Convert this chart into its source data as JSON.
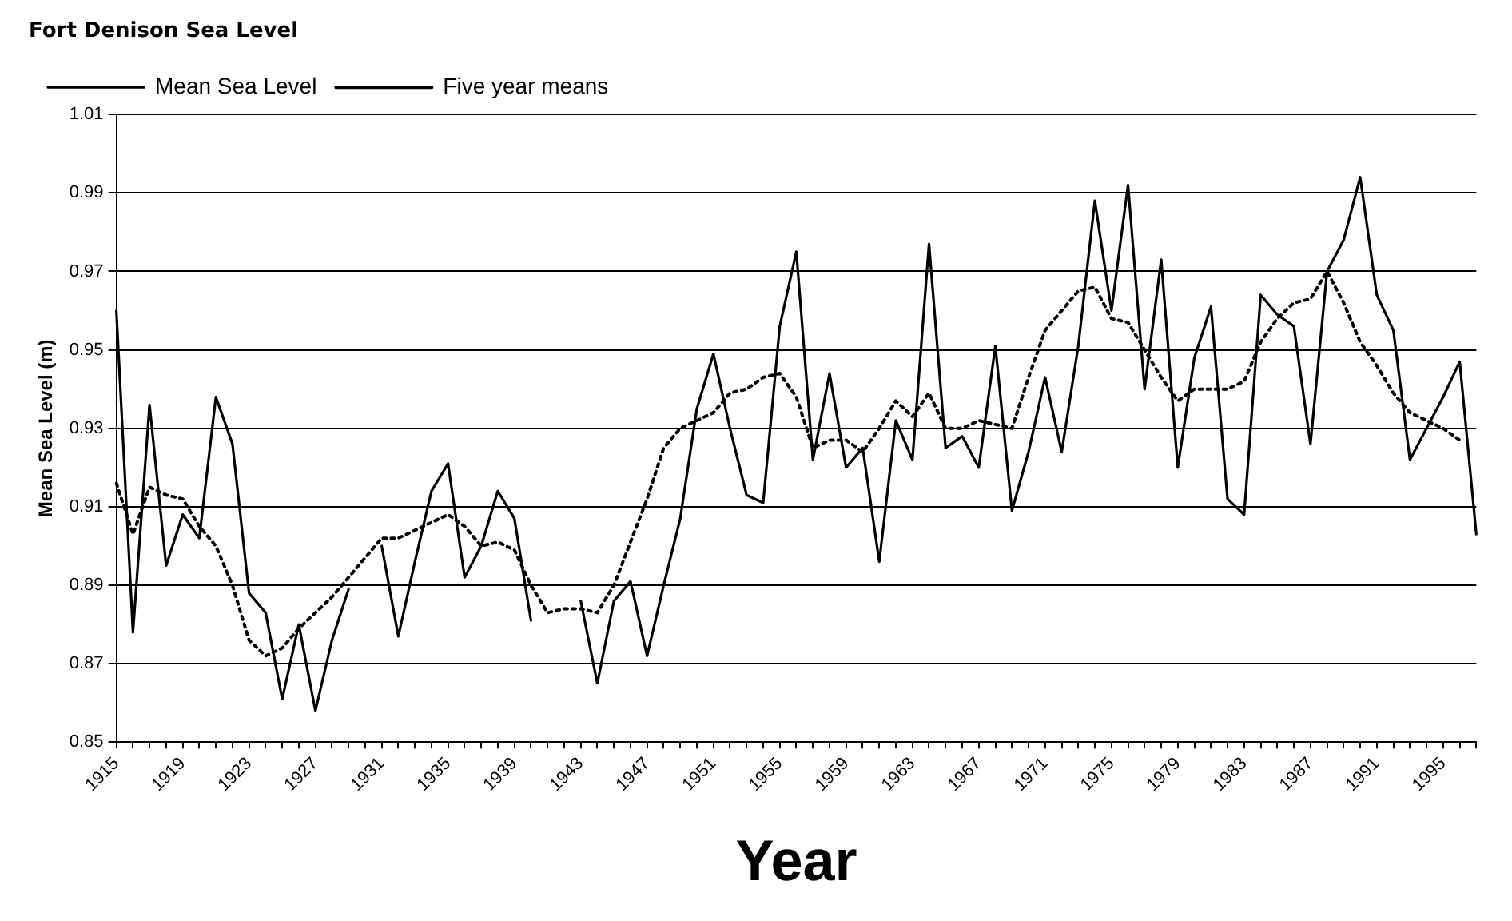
{
  "chart_data": {
    "type": "line",
    "title": "Fort Denison Sea Level",
    "xlabel": "Year",
    "ylabel": "Mean Sea Level (m)",
    "categories": [
      "1915",
      null,
      null,
      null,
      "1919",
      null,
      null,
      null,
      "1923",
      null,
      null,
      null,
      "1927",
      null,
      null,
      null,
      "1931",
      null,
      null,
      null,
      "1935",
      null,
      null,
      null,
      "1939",
      null,
      null,
      null,
      "1943",
      null,
      null,
      null,
      "1947",
      null,
      null,
      null,
      "1951",
      null,
      null,
      null,
      "1955",
      null,
      null,
      null,
      "1959",
      null,
      null,
      null,
      "1963",
      null,
      null,
      null,
      "1967",
      null,
      null,
      null,
      "1971",
      null,
      null,
      null,
      "1975",
      null,
      null,
      null,
      "1979",
      null,
      null,
      null,
      "1983",
      null,
      null,
      null,
      "1987",
      null,
      null,
      null,
      "1991",
      null,
      null,
      null,
      "1995",
      null,
      null
    ],
    "series": [
      {
        "name": "Mean Sea Level",
        "color": "#000000",
        "line_style": "solid",
        "values": [
          0.96,
          0.878,
          0.936,
          0.895,
          0.908,
          0.902,
          0.938,
          0.926,
          0.888,
          0.883,
          0.861,
          0.88,
          0.858,
          0.876,
          0.889,
          null,
          0.9,
          0.877,
          0.896,
          0.914,
          0.921,
          0.892,
          0.9,
          0.914,
          0.907,
          0.881,
          null,
          null,
          0.886,
          0.865,
          0.886,
          0.891,
          0.872,
          0.89,
          0.907,
          0.935,
          0.949,
          0.93,
          0.913,
          0.911,
          0.956,
          0.975,
          0.922,
          0.944,
          0.92,
          0.925,
          0.896,
          0.932,
          0.922,
          0.977,
          0.925,
          0.928,
          0.92,
          0.951,
          0.909,
          0.924,
          0.943,
          0.924,
          0.951,
          0.988,
          0.96,
          0.992,
          0.94,
          0.973,
          0.92,
          0.948,
          0.961,
          0.912,
          0.908,
          0.964,
          0.959,
          0.956,
          0.926,
          0.97,
          0.978,
          0.994,
          0.964,
          0.955,
          0.922,
          0.93,
          0.938,
          0.947,
          0.903
        ]
      },
      {
        "name": "Five year means",
        "color": "#000000",
        "line_style": "dotted",
        "values": [
          0.916,
          0.903,
          0.915,
          0.913,
          0.912,
          0.905,
          0.9,
          0.89,
          0.876,
          0.872,
          0.874,
          0.879,
          0.883,
          0.887,
          0.892,
          0.897,
          0.902,
          0.902,
          0.904,
          0.906,
          0.908,
          0.905,
          0.9,
          0.901,
          0.899,
          0.89,
          0.883,
          0.884,
          0.884,
          0.883,
          0.89,
          0.901,
          0.912,
          0.925,
          0.93,
          0.932,
          0.934,
          0.939,
          0.94,
          0.943,
          0.944,
          0.938,
          0.925,
          0.927,
          0.927,
          0.924,
          0.93,
          0.937,
          0.933,
          0.939,
          0.93,
          0.93,
          0.932,
          0.931,
          0.93,
          0.943,
          0.955,
          0.96,
          0.965,
          0.966,
          0.958,
          0.957,
          0.95,
          0.943,
          0.937,
          0.94,
          0.94,
          0.94,
          0.942,
          0.952,
          0.958,
          0.962,
          0.963,
          0.97,
          0.962,
          0.952,
          0.946,
          0.939,
          0.934,
          0.932,
          0.93,
          0.927,
          null
        ]
      }
    ],
    "ylim": [
      0.85,
      1.01
    ],
    "yticks": [
      0.85,
      0.87,
      0.89,
      0.91,
      0.93,
      0.95,
      0.97,
      0.99,
      1.01
    ],
    "grid": "y",
    "legend": "top",
    "marker": "none"
  }
}
